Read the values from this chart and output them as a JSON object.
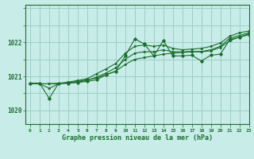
{
  "background_color": "#c8ece8",
  "grid_color": "#9ecec8",
  "line_color": "#1a6e2e",
  "xlabel": "Graphe pression niveau de la mer (hPa)",
  "ylim": [
    1019.6,
    1023.1
  ],
  "xlim": [
    -0.5,
    23
  ],
  "yticks": [
    1020,
    1021,
    1022
  ],
  "xticks": [
    0,
    1,
    2,
    3,
    4,
    5,
    6,
    7,
    8,
    9,
    10,
    11,
    12,
    13,
    14,
    15,
    16,
    17,
    18,
    19,
    20,
    21,
    22,
    23
  ],
  "series_jagged": [
    1020.8,
    1020.8,
    1020.35,
    1020.8,
    1020.8,
    1020.82,
    1020.85,
    1020.9,
    1021.05,
    1021.15,
    1021.6,
    1022.1,
    1021.95,
    1021.6,
    1022.05,
    1021.6,
    1021.6,
    1021.62,
    1021.45,
    1021.62,
    1021.65,
    1022.08,
    1022.15,
    1022.25
  ],
  "series_line1": [
    1020.78,
    1020.78,
    1020.78,
    1020.8,
    1020.82,
    1020.85,
    1020.9,
    1020.95,
    1021.05,
    1021.15,
    1021.35,
    1021.5,
    1021.55,
    1021.6,
    1021.65,
    1021.68,
    1021.7,
    1021.72,
    1021.72,
    1021.75,
    1021.85,
    1022.05,
    1022.15,
    1022.22
  ],
  "series_line2": [
    1020.78,
    1020.78,
    1020.65,
    1020.78,
    1020.8,
    1020.83,
    1020.88,
    1020.98,
    1021.1,
    1021.25,
    1021.5,
    1021.68,
    1021.72,
    1021.72,
    1021.78,
    1021.72,
    1021.72,
    1021.73,
    1021.73,
    1021.78,
    1021.88,
    1022.12,
    1022.2,
    1022.28
  ],
  "series_line3": [
    1020.78,
    1020.78,
    1020.78,
    1020.78,
    1020.83,
    1020.88,
    1020.93,
    1021.08,
    1021.22,
    1021.38,
    1021.68,
    1021.88,
    1021.92,
    1021.88,
    1021.92,
    1021.82,
    1021.78,
    1021.8,
    1021.82,
    1021.88,
    1021.98,
    1022.18,
    1022.28,
    1022.33
  ]
}
